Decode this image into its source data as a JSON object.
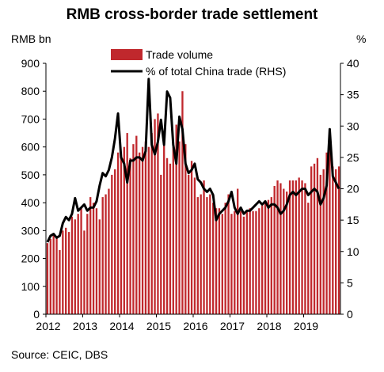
{
  "title": "RMB cross-border trade settlement",
  "source": "Source: CEIC, DBS",
  "chart_data": {
    "type": "bar+line",
    "title": "RMB cross-border trade settlement",
    "left_unit": "RMB bn",
    "right_unit": "%",
    "ylim_left": [
      0,
      900
    ],
    "ylim_right": [
      0,
      40
    ],
    "left_ticks": [
      "0",
      "100",
      "200",
      "300",
      "400",
      "500",
      "600",
      "700",
      "800",
      "900"
    ],
    "right_ticks": [
      "0",
      "5",
      "10",
      "15",
      "20",
      "25",
      "30",
      "35",
      "40"
    ],
    "x_ticks": [
      "2012",
      "2013",
      "2014",
      "2015",
      "2016",
      "2017",
      "2018",
      "2019"
    ],
    "colors": {
      "bar": "#c0282d",
      "line": "#000000"
    },
    "legend_position": "top-center",
    "series": [
      {
        "name": "Trade volume",
        "type": "bar",
        "axis": "left",
        "start": "2012-01",
        "values": [
          255,
          270,
          290,
          280,
          230,
          300,
          310,
          295,
          350,
          340,
          360,
          380,
          300,
          360,
          420,
          400,
          380,
          340,
          420,
          430,
          450,
          500,
          520,
          580,
          560,
          600,
          650,
          560,
          610,
          640,
          580,
          600,
          620,
          600,
          650,
          700,
          720,
          500,
          650,
          560,
          540,
          600,
          680,
          620,
          800,
          610,
          500,
          550,
          490,
          420,
          430,
          480,
          420,
          430,
          400,
          380,
          380,
          360,
          400,
          430,
          360,
          370,
          450,
          370,
          350,
          370,
          380,
          370,
          370,
          380,
          390,
          400,
          410,
          420,
          460,
          480,
          470,
          450,
          440,
          480,
          480,
          480,
          490,
          480,
          470,
          400,
          530,
          540,
          560,
          500,
          520,
          580,
          610,
          530,
          520,
          530
        ]
      },
      {
        "name": "% of total China trade (RHS)",
        "type": "line",
        "axis": "right",
        "start": "2012-01",
        "values": [
          11.5,
          12.5,
          12.8,
          12.2,
          12.5,
          14.5,
          15.5,
          15.0,
          16.0,
          18.5,
          16.5,
          17.0,
          17.5,
          16.5,
          17.0,
          17.0,
          18.0,
          20.5,
          22.5,
          22.0,
          23.0,
          25.0,
          28.0,
          32.0,
          25.0,
          24.0,
          21.0,
          24.5,
          24.5,
          25.0,
          25.0,
          24.5,
          26.0,
          37.5,
          27.0,
          25.5,
          27.5,
          31.0,
          27.0,
          35.5,
          34.5,
          27.0,
          24.0,
          31.5,
          29.5,
          24.0,
          22.5,
          23.0,
          24.0,
          21.5,
          21.0,
          20.0,
          19.5,
          20.0,
          19.0,
          15.0,
          16.0,
          16.5,
          17.0,
          18.0,
          19.5,
          17.0,
          16.0,
          17.0,
          16.0,
          16.5,
          16.5,
          17.0,
          17.5,
          18.0,
          17.5,
          18.0,
          17.0,
          17.5,
          17.5,
          17.0,
          16.0,
          16.5,
          17.5,
          19.0,
          19.5,
          19.0,
          19.5,
          20.0,
          20.0,
          19.0,
          19.5,
          20.0,
          19.5,
          17.5,
          18.5,
          20.5,
          29.5,
          22.0,
          21.0,
          20.0
        ]
      }
    ]
  }
}
